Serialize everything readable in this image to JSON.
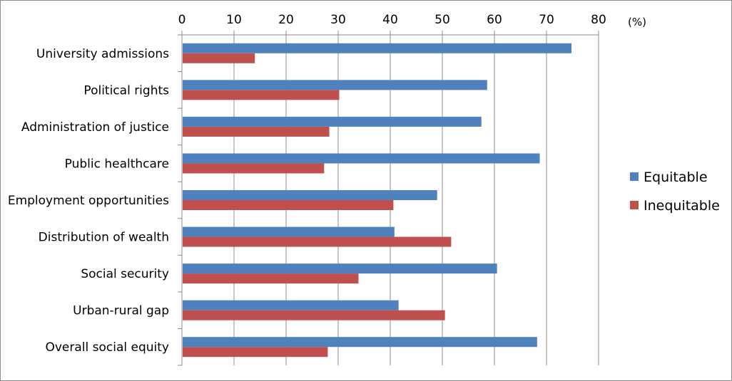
{
  "chart_data": {
    "type": "bar",
    "orientation": "horizontal",
    "categories": [
      "University admissions",
      "Political rights",
      "Administration of justice",
      "Public healthcare",
      "Employment opportunities",
      "Distribution of wealth",
      "Social security",
      "Urban-rural gap",
      "Overall social equity"
    ],
    "series": [
      {
        "name": "Equitable",
        "color": "#4f81bd",
        "values": [
          74.8,
          58.6,
          57.5,
          68.7,
          49.0,
          40.8,
          60.5,
          41.6,
          68.2
        ]
      },
      {
        "name": "Inequitable",
        "color": "#c0504d",
        "values": [
          14.0,
          30.2,
          28.3,
          27.3,
          40.6,
          51.7,
          33.9,
          50.5,
          28.0
        ]
      }
    ],
    "xlim": [
      0,
      80
    ],
    "x_ticks": [
      "0",
      "10",
      "20",
      "30",
      "40",
      "50",
      "60",
      "70",
      "80"
    ],
    "x_axis_position": "top",
    "unit_label": "(%)",
    "legend_position": "right",
    "gridlines": "vertical"
  }
}
